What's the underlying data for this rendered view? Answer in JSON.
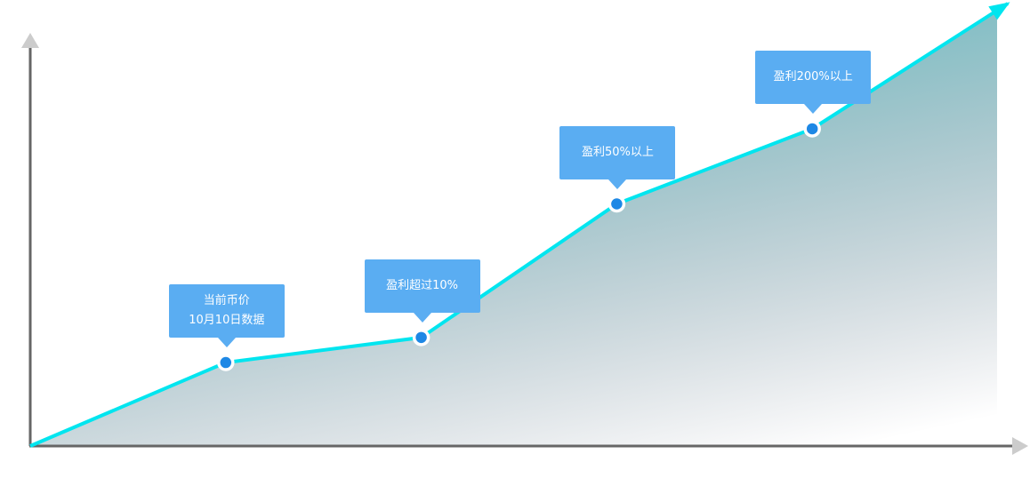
{
  "colors": {
    "axis": "#666666",
    "axis_arrow": "#cccccc",
    "line": "#00e5ef",
    "area_top": "#2a9ca5",
    "point_fill": "#1e88e5",
    "callout_bg": "#5aadf2"
  },
  "chart_data": {
    "type": "area",
    "title": "",
    "xlabel": "",
    "ylabel": "",
    "grid": false,
    "points": [
      {
        "x": 0,
        "y": 0
      },
      {
        "x": 1,
        "y": 1
      },
      {
        "x": 2,
        "y": 1.3
      },
      {
        "x": 3,
        "y": 2.9
      },
      {
        "x": 4,
        "y": 3.8
      },
      {
        "x": 5,
        "y": 5.3
      }
    ],
    "annotations": [
      {
        "point_index": 1,
        "lines": [
          "当前币价",
          "10月10日数据"
        ]
      },
      {
        "point_index": 2,
        "lines": [
          "盈利超过10%"
        ]
      },
      {
        "point_index": 3,
        "lines": [
          "盈利50%以上"
        ]
      },
      {
        "point_index": 4,
        "lines": [
          "盈利200%以上"
        ]
      }
    ]
  }
}
